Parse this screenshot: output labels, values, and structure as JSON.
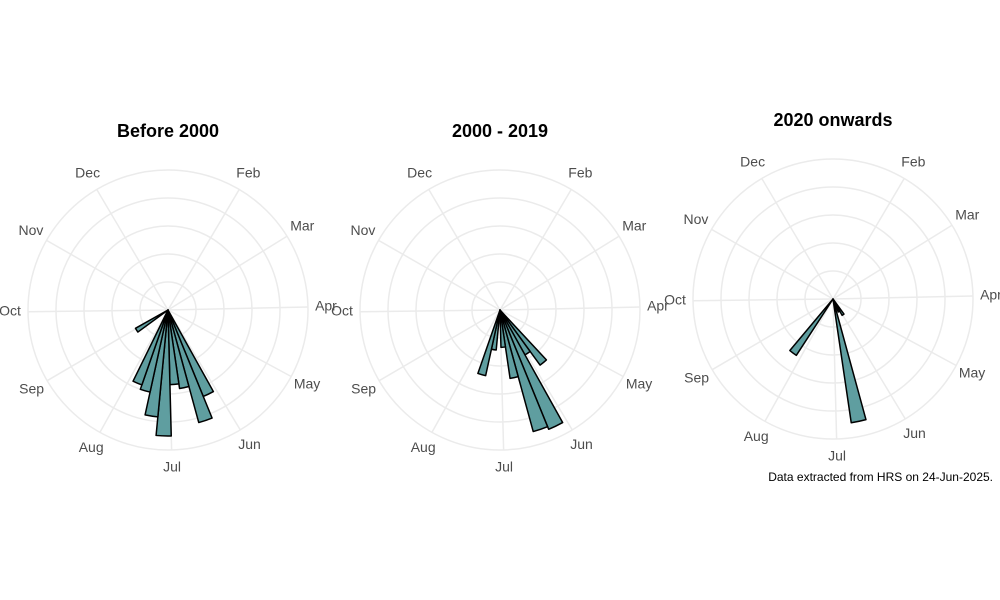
{
  "chart_data": [
    {
      "type": "rose",
      "title": "Before 2000",
      "color": "#5f9ea0",
      "bin_width": 7,
      "x": [
        154,
        161,
        168,
        175,
        182,
        189,
        196,
        203,
        238
      ],
      "values": [
        10,
        12.5,
        8.5,
        8,
        13.5,
        11.5,
        9,
        8.5,
        4
      ],
      "rlim": [
        0,
        15
      ],
      "rticks": [
        3,
        6,
        9,
        12,
        15
      ],
      "xticks": [
        {
          "value": 32,
          "label": "Feb"
        },
        {
          "value": 60,
          "label": "Mar"
        },
        {
          "value": 91,
          "label": "Apr"
        },
        {
          "value": 121,
          "label": "May"
        },
        {
          "value": 152,
          "label": "Jun"
        },
        {
          "value": 182,
          "label": "Jul"
        },
        {
          "value": 213,
          "label": "Aug"
        },
        {
          "value": 244,
          "label": "Sep"
        },
        {
          "value": 274,
          "label": "Oct"
        },
        {
          "value": 305,
          "label": "Nov"
        },
        {
          "value": 335,
          "label": "Dec"
        }
      ]
    },
    {
      "type": "rose",
      "title": "2000 - 2019",
      "color": "#5f9ea0",
      "bin_width": 7,
      "x": [
        140,
        147,
        154,
        161,
        168,
        175,
        189,
        196
      ],
      "values": [
        7.3,
        5.5,
        13.8,
        13.5,
        7.4,
        4,
        4.3,
        7.2
      ],
      "rlim": [
        0,
        15
      ],
      "rticks": [
        3,
        6,
        9,
        12,
        15
      ],
      "xticks": [
        {
          "value": 32,
          "label": "Feb"
        },
        {
          "value": 60,
          "label": "Mar"
        },
        {
          "value": 91,
          "label": "Apr"
        },
        {
          "value": 121,
          "label": "May"
        },
        {
          "value": 152,
          "label": "Jun"
        },
        {
          "value": 182,
          "label": "Jul"
        },
        {
          "value": 213,
          "label": "Aug"
        },
        {
          "value": 244,
          "label": "Sep"
        },
        {
          "value": 274,
          "label": "Oct"
        },
        {
          "value": 305,
          "label": "Nov"
        },
        {
          "value": 335,
          "label": "Dec"
        }
      ]
    },
    {
      "type": "rose",
      "title": "2020 onwards",
      "color": "#5f9ea0",
      "bin_width": 7,
      "x": [
        147,
        154,
        168,
        217
      ],
      "values": [
        2,
        1.5,
        13.4,
        7.2
      ],
      "rlim": [
        0,
        15
      ],
      "rticks": [
        3,
        6,
        9,
        12,
        15
      ],
      "xticks": [
        {
          "value": 32,
          "label": "Feb"
        },
        {
          "value": 60,
          "label": "Mar"
        },
        {
          "value": 91,
          "label": "Apr"
        },
        {
          "value": 121,
          "label": "May"
        },
        {
          "value": 152,
          "label": "Jun"
        },
        {
          "value": 182,
          "label": "Jul"
        },
        {
          "value": 213,
          "label": "Aug"
        },
        {
          "value": 244,
          "label": "Sep"
        },
        {
          "value": 274,
          "label": "Oct"
        },
        {
          "value": 305,
          "label": "Nov"
        },
        {
          "value": 335,
          "label": "Dec"
        }
      ],
      "caption": "Data extracted from HRS on 24-Jun-2025."
    }
  ]
}
